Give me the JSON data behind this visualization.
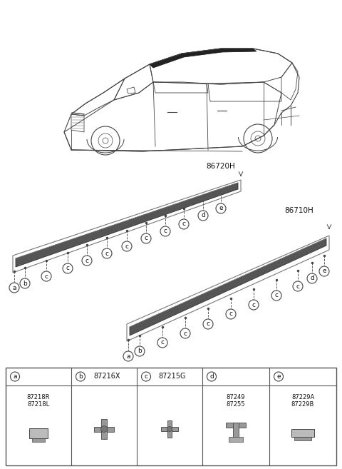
{
  "bg_color": "#ffffff",
  "label_86720H": "86720H",
  "label_86710H": "86710H",
  "line_color": "#444444",
  "text_color": "#111111",
  "strip_color": "#555555",
  "strip_edge": "#333333",
  "box_color": "#888888",
  "table": {
    "headers": [
      "a",
      "b",
      "c",
      "d",
      "e"
    ],
    "header_parts": [
      "",
      "87216X",
      "87215G",
      "",
      ""
    ],
    "cell_parts_a": [
      "87218R",
      "87218L"
    ],
    "cell_parts_d": [
      "87249",
      "87255"
    ],
    "cell_parts_e": [
      "87229A",
      "87229B"
    ]
  }
}
